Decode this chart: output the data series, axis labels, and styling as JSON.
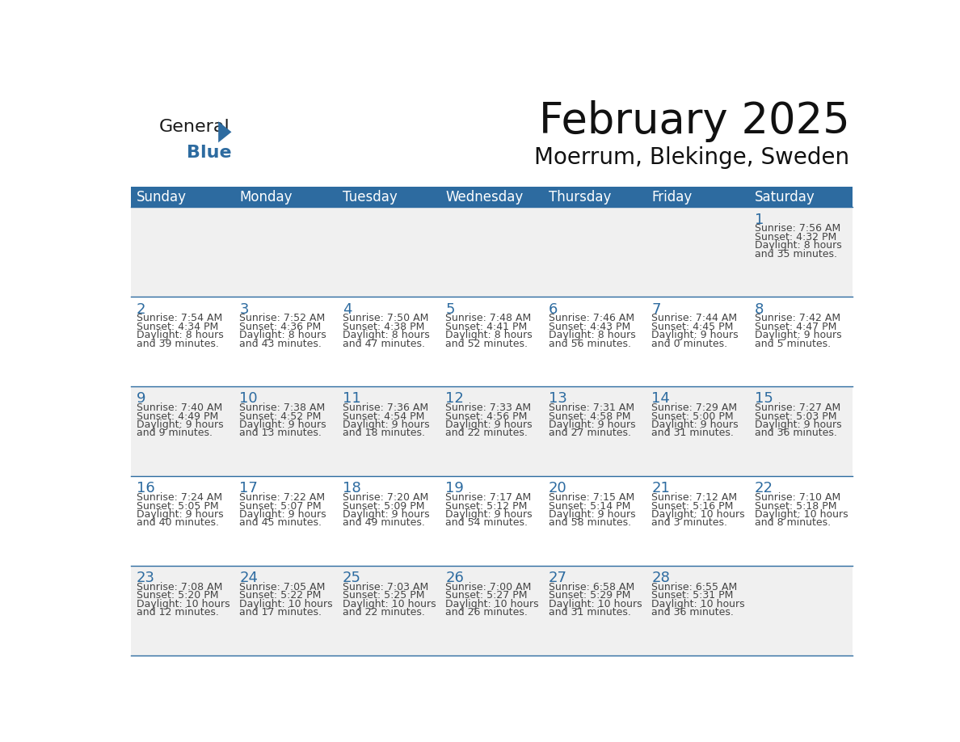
{
  "title": "February 2025",
  "subtitle": "Moerrum, Blekinge, Sweden",
  "header_bg": "#2D6BA0",
  "header_text_color": "#FFFFFF",
  "cell_bg_light": "#F0F0F0",
  "cell_bg_white": "#FFFFFF",
  "day_number_color": "#2D6BA0",
  "text_color": "#444444",
  "line_color": "#2D6BA0",
  "days_of_week": [
    "Sunday",
    "Monday",
    "Tuesday",
    "Wednesday",
    "Thursday",
    "Friday",
    "Saturday"
  ],
  "weeks": [
    [
      {
        "day": "",
        "info": ""
      },
      {
        "day": "",
        "info": ""
      },
      {
        "day": "",
        "info": ""
      },
      {
        "day": "",
        "info": ""
      },
      {
        "day": "",
        "info": ""
      },
      {
        "day": "",
        "info": ""
      },
      {
        "day": "1",
        "info": "Sunrise: 7:56 AM\nSunset: 4:32 PM\nDaylight: 8 hours\nand 35 minutes."
      }
    ],
    [
      {
        "day": "2",
        "info": "Sunrise: 7:54 AM\nSunset: 4:34 PM\nDaylight: 8 hours\nand 39 minutes."
      },
      {
        "day": "3",
        "info": "Sunrise: 7:52 AM\nSunset: 4:36 PM\nDaylight: 8 hours\nand 43 minutes."
      },
      {
        "day": "4",
        "info": "Sunrise: 7:50 AM\nSunset: 4:38 PM\nDaylight: 8 hours\nand 47 minutes."
      },
      {
        "day": "5",
        "info": "Sunrise: 7:48 AM\nSunset: 4:41 PM\nDaylight: 8 hours\nand 52 minutes."
      },
      {
        "day": "6",
        "info": "Sunrise: 7:46 AM\nSunset: 4:43 PM\nDaylight: 8 hours\nand 56 minutes."
      },
      {
        "day": "7",
        "info": "Sunrise: 7:44 AM\nSunset: 4:45 PM\nDaylight: 9 hours\nand 0 minutes."
      },
      {
        "day": "8",
        "info": "Sunrise: 7:42 AM\nSunset: 4:47 PM\nDaylight: 9 hours\nand 5 minutes."
      }
    ],
    [
      {
        "day": "9",
        "info": "Sunrise: 7:40 AM\nSunset: 4:49 PM\nDaylight: 9 hours\nand 9 minutes."
      },
      {
        "day": "10",
        "info": "Sunrise: 7:38 AM\nSunset: 4:52 PM\nDaylight: 9 hours\nand 13 minutes."
      },
      {
        "day": "11",
        "info": "Sunrise: 7:36 AM\nSunset: 4:54 PM\nDaylight: 9 hours\nand 18 minutes."
      },
      {
        "day": "12",
        "info": "Sunrise: 7:33 AM\nSunset: 4:56 PM\nDaylight: 9 hours\nand 22 minutes."
      },
      {
        "day": "13",
        "info": "Sunrise: 7:31 AM\nSunset: 4:58 PM\nDaylight: 9 hours\nand 27 minutes."
      },
      {
        "day": "14",
        "info": "Sunrise: 7:29 AM\nSunset: 5:00 PM\nDaylight: 9 hours\nand 31 minutes."
      },
      {
        "day": "15",
        "info": "Sunrise: 7:27 AM\nSunset: 5:03 PM\nDaylight: 9 hours\nand 36 minutes."
      }
    ],
    [
      {
        "day": "16",
        "info": "Sunrise: 7:24 AM\nSunset: 5:05 PM\nDaylight: 9 hours\nand 40 minutes."
      },
      {
        "day": "17",
        "info": "Sunrise: 7:22 AM\nSunset: 5:07 PM\nDaylight: 9 hours\nand 45 minutes."
      },
      {
        "day": "18",
        "info": "Sunrise: 7:20 AM\nSunset: 5:09 PM\nDaylight: 9 hours\nand 49 minutes."
      },
      {
        "day": "19",
        "info": "Sunrise: 7:17 AM\nSunset: 5:12 PM\nDaylight: 9 hours\nand 54 minutes."
      },
      {
        "day": "20",
        "info": "Sunrise: 7:15 AM\nSunset: 5:14 PM\nDaylight: 9 hours\nand 58 minutes."
      },
      {
        "day": "21",
        "info": "Sunrise: 7:12 AM\nSunset: 5:16 PM\nDaylight: 10 hours\nand 3 minutes."
      },
      {
        "day": "22",
        "info": "Sunrise: 7:10 AM\nSunset: 5:18 PM\nDaylight: 10 hours\nand 8 minutes."
      }
    ],
    [
      {
        "day": "23",
        "info": "Sunrise: 7:08 AM\nSunset: 5:20 PM\nDaylight: 10 hours\nand 12 minutes."
      },
      {
        "day": "24",
        "info": "Sunrise: 7:05 AM\nSunset: 5:22 PM\nDaylight: 10 hours\nand 17 minutes."
      },
      {
        "day": "25",
        "info": "Sunrise: 7:03 AM\nSunset: 5:25 PM\nDaylight: 10 hours\nand 22 minutes."
      },
      {
        "day": "26",
        "info": "Sunrise: 7:00 AM\nSunset: 5:27 PM\nDaylight: 10 hours\nand 26 minutes."
      },
      {
        "day": "27",
        "info": "Sunrise: 6:58 AM\nSunset: 5:29 PM\nDaylight: 10 hours\nand 31 minutes."
      },
      {
        "day": "28",
        "info": "Sunrise: 6:55 AM\nSunset: 5:31 PM\nDaylight: 10 hours\nand 36 minutes."
      },
      {
        "day": "",
        "info": ""
      }
    ]
  ]
}
